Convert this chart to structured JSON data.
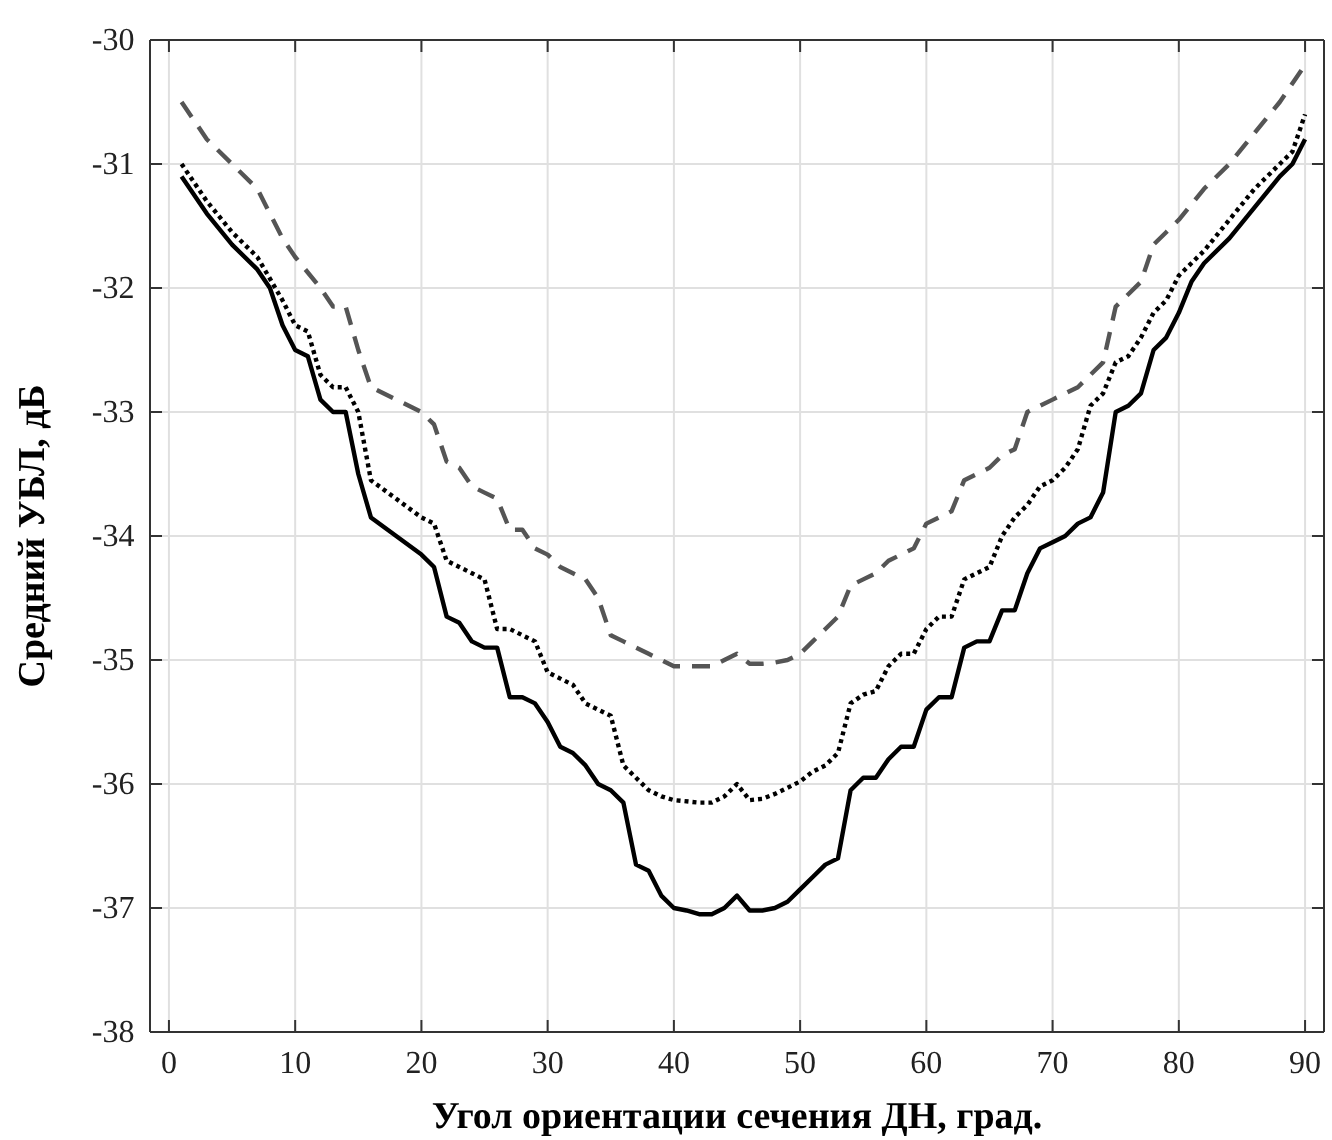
{
  "chart_data": {
    "type": "line",
    "xlabel": "Угол ориентации сечения ДН, град.",
    "ylabel": "Средний УБЛ, дБ",
    "xlim": [
      -1.5,
      91.5
    ],
    "ylim": [
      -38,
      -30
    ],
    "xticks": [
      0,
      10,
      20,
      30,
      40,
      50,
      60,
      70,
      80,
      90
    ],
    "yticks": [
      -38,
      -37,
      -36,
      -35,
      -34,
      -33,
      -32,
      -31,
      -30
    ],
    "grid": true,
    "marker": "none",
    "series": [
      {
        "color": "#000000",
        "line_style": "solid",
        "x": [
          1,
          3,
          5,
          7,
          8,
          9,
          10,
          11,
          12,
          13,
          14,
          15,
          16,
          18,
          20,
          21,
          22,
          23,
          24,
          25,
          26,
          27,
          28,
          29,
          30,
          31,
          32,
          33,
          34,
          35,
          36,
          37,
          38,
          39,
          40,
          41,
          42,
          43,
          44,
          45,
          46,
          47,
          48,
          49,
          50,
          51,
          52,
          53,
          54,
          55,
          56,
          57,
          58,
          59,
          60,
          61,
          62,
          63,
          64,
          65,
          66,
          67,
          68,
          69,
          70,
          71,
          72,
          73,
          74,
          75,
          76,
          77,
          78,
          79,
          80,
          81,
          82,
          84,
          86,
          88,
          89,
          90
        ],
        "values": [
          -31.1,
          -31.4,
          -31.65,
          -31.85,
          -32.0,
          -32.3,
          -32.5,
          -32.55,
          -32.9,
          -33.0,
          -33.0,
          -33.5,
          -33.85,
          -34.0,
          -34.15,
          -34.25,
          -34.65,
          -34.7,
          -34.85,
          -34.9,
          -34.9,
          -35.3,
          -35.3,
          -35.35,
          -35.5,
          -35.7,
          -35.75,
          -35.85,
          -36.0,
          -36.05,
          -36.15,
          -36.65,
          -36.7,
          -36.9,
          -37.0,
          -37.02,
          -37.05,
          -37.05,
          -37.0,
          -36.9,
          -37.02,
          -37.02,
          -37.0,
          -36.95,
          -36.85,
          -36.75,
          -36.65,
          -36.6,
          -36.05,
          -35.95,
          -35.95,
          -35.8,
          -35.7,
          -35.7,
          -35.4,
          -35.3,
          -35.3,
          -34.9,
          -34.85,
          -34.85,
          -34.6,
          -34.6,
          -34.3,
          -34.1,
          -34.05,
          -34.0,
          -33.9,
          -33.85,
          -33.65,
          -33.0,
          -32.95,
          -32.85,
          -32.5,
          -32.4,
          -32.2,
          -31.95,
          -31.8,
          -31.6,
          -31.35,
          -31.1,
          -31.0,
          -30.8
        ]
      },
      {
        "color": "#000000",
        "line_style": "dotted",
        "x": [
          1,
          3,
          5,
          7,
          9,
          10,
          11,
          12,
          13,
          14,
          15,
          16,
          18,
          20,
          21,
          22,
          23,
          24,
          25,
          26,
          27,
          28,
          29,
          30,
          31,
          32,
          33,
          34,
          35,
          36,
          37,
          38,
          39,
          40,
          42,
          43,
          44,
          45,
          46,
          47,
          48,
          49,
          50,
          51,
          52,
          53,
          54,
          55,
          56,
          57,
          58,
          59,
          60,
          61,
          62,
          63,
          64,
          65,
          66,
          67,
          68,
          69,
          70,
          71,
          72,
          73,
          74,
          75,
          76,
          77,
          78,
          79,
          80,
          82,
          84,
          86,
          88,
          89,
          90
        ],
        "values": [
          -31.0,
          -31.3,
          -31.55,
          -31.75,
          -32.1,
          -32.3,
          -32.35,
          -32.7,
          -32.8,
          -32.8,
          -33.0,
          -33.55,
          -33.7,
          -33.85,
          -33.9,
          -34.2,
          -34.25,
          -34.3,
          -34.35,
          -34.75,
          -34.75,
          -34.8,
          -34.85,
          -35.1,
          -35.15,
          -35.2,
          -35.35,
          -35.4,
          -35.45,
          -35.85,
          -35.95,
          -36.05,
          -36.1,
          -36.13,
          -36.15,
          -36.15,
          -36.1,
          -36.0,
          -36.13,
          -36.12,
          -36.08,
          -36.03,
          -35.98,
          -35.9,
          -35.85,
          -35.75,
          -35.35,
          -35.28,
          -35.25,
          -35.05,
          -34.95,
          -34.95,
          -34.75,
          -34.65,
          -34.65,
          -34.35,
          -34.3,
          -34.25,
          -34.0,
          -33.85,
          -33.75,
          -33.6,
          -33.55,
          -33.45,
          -33.3,
          -32.95,
          -32.85,
          -32.6,
          -32.55,
          -32.4,
          -32.2,
          -32.1,
          -31.9,
          -31.7,
          -31.45,
          -31.2,
          -31.0,
          -30.9,
          -30.6
        ]
      },
      {
        "color": "#555555",
        "line_style": "dashed",
        "x": [
          1,
          3,
          5,
          7,
          9,
          10,
          12,
          13,
          14,
          15,
          16,
          18,
          20,
          21,
          22,
          23,
          24,
          25,
          26,
          27,
          28,
          29,
          30,
          31,
          32,
          33,
          34,
          35,
          36,
          37,
          38,
          39,
          40,
          42,
          43,
          44,
          45,
          46,
          47,
          48,
          49,
          50,
          51,
          52,
          53,
          54,
          55,
          56,
          57,
          58,
          59,
          60,
          61,
          62,
          63,
          64,
          65,
          66,
          67,
          68,
          69,
          70,
          71,
          72,
          73,
          74,
          75,
          76,
          77,
          78,
          79,
          80,
          82,
          84,
          86,
          88,
          90
        ],
        "values": [
          -30.5,
          -30.8,
          -31.0,
          -31.2,
          -31.6,
          -31.75,
          -32.0,
          -32.15,
          -32.15,
          -32.5,
          -32.8,
          -32.9,
          -33.0,
          -33.1,
          -33.4,
          -33.45,
          -33.6,
          -33.65,
          -33.7,
          -33.95,
          -33.95,
          -34.1,
          -34.15,
          -34.25,
          -34.3,
          -34.35,
          -34.5,
          -34.8,
          -34.85,
          -34.9,
          -34.95,
          -35.0,
          -35.05,
          -35.05,
          -35.05,
          -35.0,
          -34.95,
          -35.03,
          -35.03,
          -35.02,
          -35.0,
          -34.95,
          -34.85,
          -34.75,
          -34.65,
          -34.4,
          -34.35,
          -34.3,
          -34.2,
          -34.15,
          -34.1,
          -33.9,
          -33.85,
          -33.8,
          -33.55,
          -33.5,
          -33.45,
          -33.35,
          -33.3,
          -33.0,
          -32.95,
          -32.9,
          -32.85,
          -32.8,
          -32.7,
          -32.6,
          -32.15,
          -32.05,
          -31.95,
          -31.65,
          -31.55,
          -31.45,
          -31.2,
          -31.0,
          -30.75,
          -30.5,
          -30.2
        ]
      }
    ]
  }
}
